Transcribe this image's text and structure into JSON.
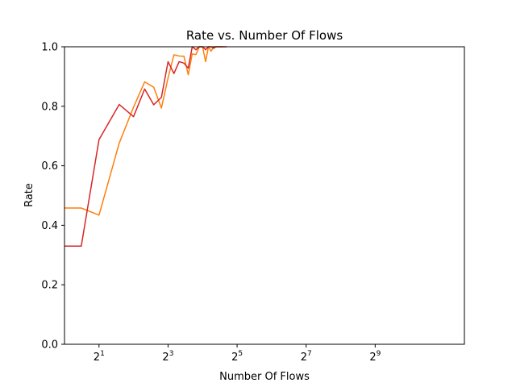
{
  "chart_data": {
    "type": "line",
    "title": "Rate vs. Number Of Flows",
    "xlabel": "Number Of Flows",
    "ylabel": "Rate",
    "xscale": "log2",
    "xlim": [
      1.0,
      3072
    ],
    "ylim": [
      0,
      1.0
    ],
    "grid": false,
    "legend": "none",
    "x_ticks": [
      {
        "value": 2,
        "base": "2",
        "exp": "1"
      },
      {
        "value": 8,
        "base": "2",
        "exp": "3"
      },
      {
        "value": 32,
        "base": "2",
        "exp": "5"
      },
      {
        "value": 128,
        "base": "2",
        "exp": "7"
      },
      {
        "value": 512,
        "base": "2",
        "exp": "9"
      }
    ],
    "y_ticks": [
      {
        "value": 0.0,
        "label": "0.0"
      },
      {
        "value": 0.2,
        "label": "0.2"
      },
      {
        "value": 0.4,
        "label": "0.4"
      },
      {
        "value": 0.6,
        "label": "0.6"
      },
      {
        "value": 0.8,
        "label": "0.8"
      },
      {
        "value": 1.0,
        "label": "1.0"
      }
    ],
    "series": [
      {
        "color": "#ff7f0e",
        "x": [
          1,
          1.4,
          2,
          3,
          4,
          5,
          6,
          7,
          8,
          9,
          10,
          11,
          12,
          13,
          14,
          15,
          16,
          17,
          18,
          19,
          20,
          21,
          22,
          24
        ],
        "y": [
          0.458,
          0.458,
          0.434,
          0.676,
          0.797,
          0.882,
          0.864,
          0.794,
          0.895,
          0.973,
          0.969,
          0.968,
          0.906,
          0.976,
          0.974,
          1.0,
          1.0,
          0.95,
          1.0,
          0.985,
          1.0,
          1.0,
          1.0,
          1.0
        ]
      },
      {
        "color": "#d62728",
        "x": [
          1,
          1.4,
          2,
          3,
          4,
          5,
          6,
          7,
          8,
          9,
          10,
          11,
          12,
          13,
          14,
          15,
          16,
          17,
          18,
          19,
          20,
          21,
          22,
          24,
          26
        ],
        "y": [
          0.33,
          0.33,
          0.688,
          0.806,
          0.765,
          0.858,
          0.805,
          0.83,
          0.95,
          0.91,
          0.95,
          0.945,
          0.928,
          1.0,
          0.99,
          1.0,
          1.0,
          0.99,
          1.0,
          1.0,
          0.995,
          1.0,
          1.0,
          1.0,
          1.0
        ]
      }
    ]
  }
}
